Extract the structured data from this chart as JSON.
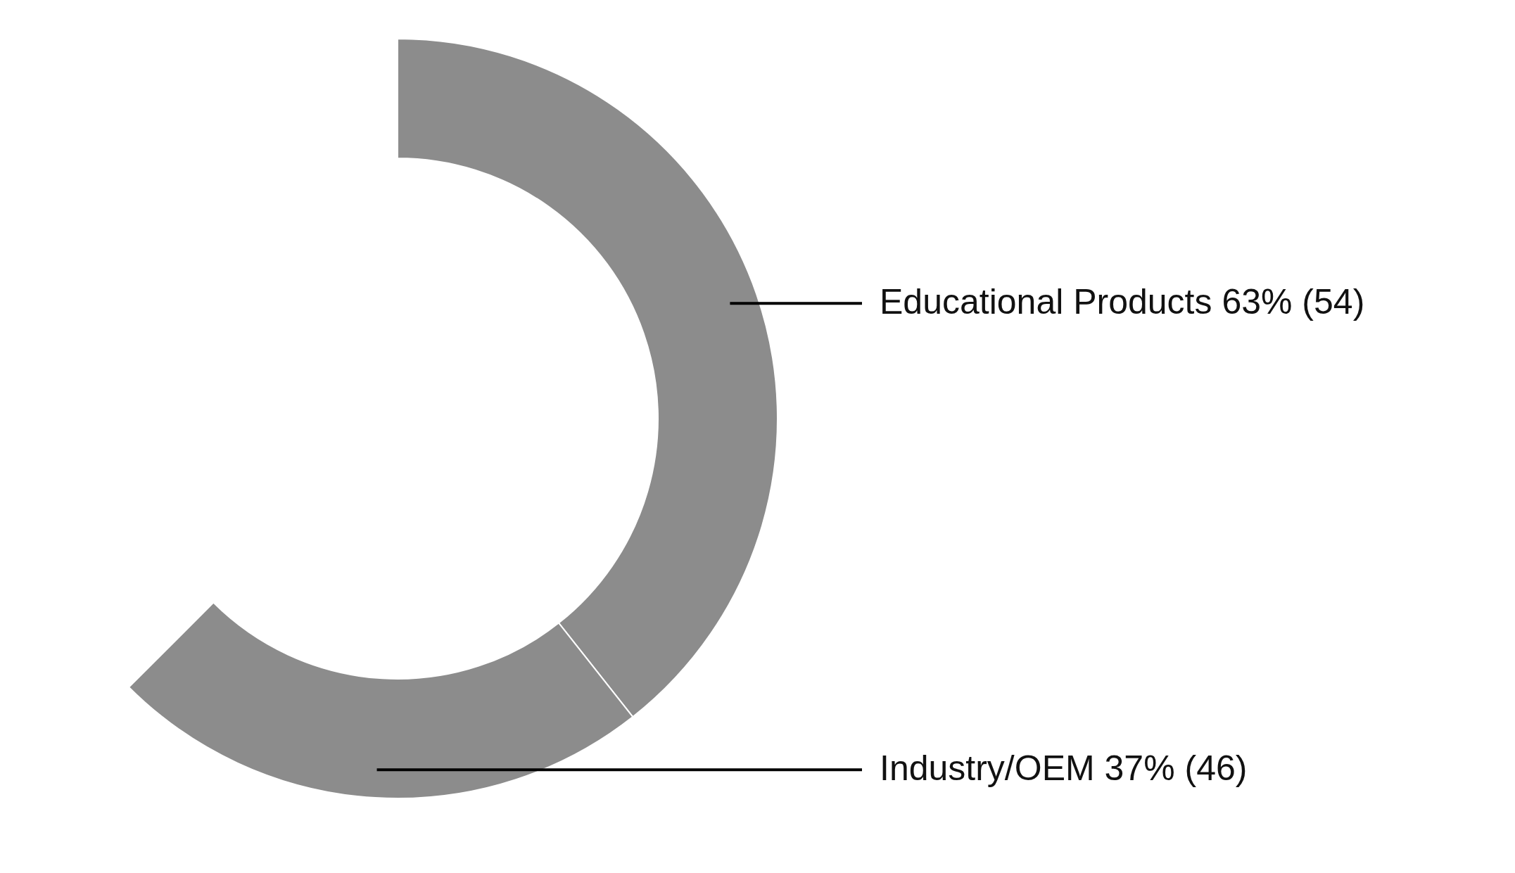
{
  "chart_data": {
    "type": "donut",
    "categories": [
      "Educational Products",
      "Industry/OEM"
    ],
    "values": [
      63,
      37
    ],
    "value_labels": [
      "63% (54)",
      "37% (46)"
    ],
    "colors": [
      "#8c8c8c",
      "#8c8c8c"
    ]
  }
}
